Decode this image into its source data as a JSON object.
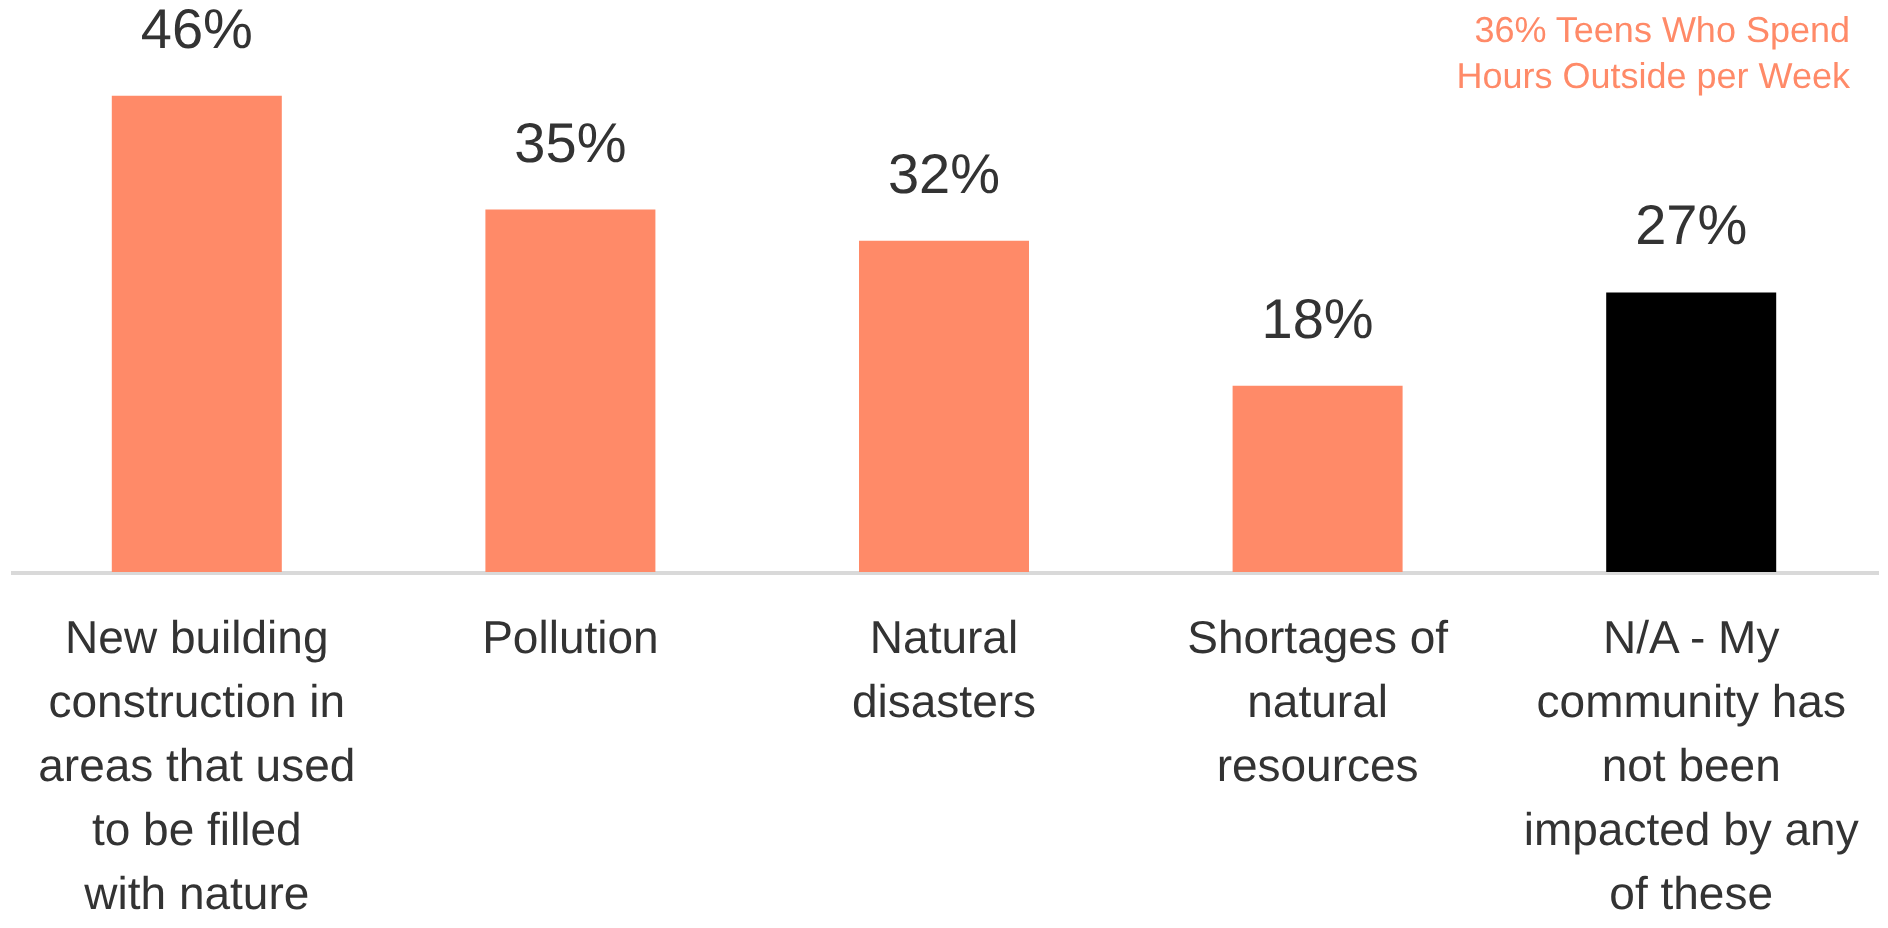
{
  "chart_data": {
    "type": "bar",
    "categories": [
      "New building construction in areas that used to be filled with nature",
      "Pollution",
      "Natural disasters",
      "Shortages of natural resources",
      "N/A - My community has not been impacted by any of these"
    ],
    "values": [
      46,
      35,
      32,
      18,
      27
    ],
    "colors": [
      "#ff8a68",
      "#ff8a68",
      "#ff8a68",
      "#ff8a68",
      "#000000"
    ],
    "data_labels": true,
    "value_labels": [
      "46%",
      "35%",
      "32%",
      "18%",
      "27%"
    ],
    "annotations": [
      "36% Teens Who Spend Hours Outside per Week"
    ]
  }
}
